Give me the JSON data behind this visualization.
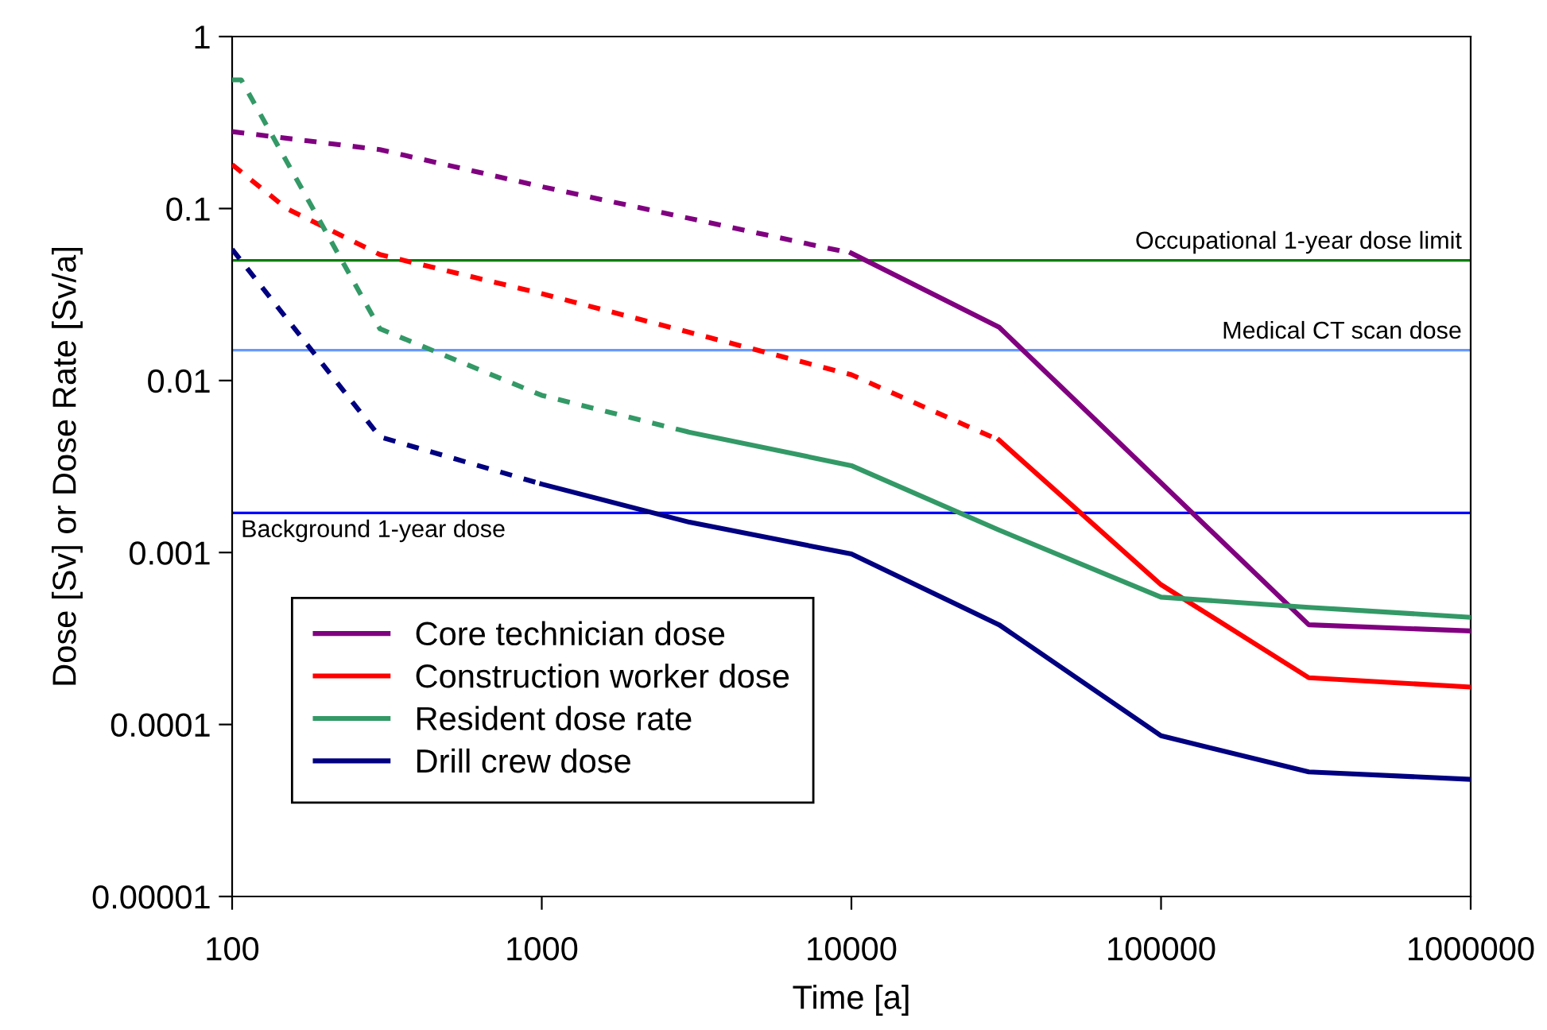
{
  "chart_data": {
    "type": "line",
    "xlabel": "Time [a]",
    "ylabel": "Dose [Sv] or Dose Rate [Sv/a]",
    "log": "xy",
    "grid": false,
    "legend": "bottom left",
    "marker": "none",
    "xlim": [
      100,
      1000000
    ],
    "xticks": [
      100,
      1000,
      10000,
      100000,
      1000000
    ],
    "ylim": [
      1e-05,
      1
    ],
    "yticks": [
      {
        "value": 1e-05,
        "label": "0.00001"
      },
      0.0001,
      0.001,
      0.01,
      0.1,
      1
    ],
    "series": [
      {
        "name": "Core technician dose",
        "color": "#800080",
        "line_style": "solid",
        "x": [
          10000,
          30000,
          300000,
          1000000
        ],
        "values": [
          0.055,
          0.0204,
          0.00038,
          0.00035
        ]
      },
      {
        "name": "Construction worker dose",
        "color": "#ff0000",
        "line_style": "solid",
        "x": [
          30000,
          100000,
          300000,
          1000000
        ],
        "values": [
          0.0045,
          0.00065,
          0.000187,
          0.000165
        ]
      },
      {
        "name": "Resident dose rate",
        "color": "#339966",
        "line_style": "solid",
        "x": [
          3000,
          10000,
          30000,
          100000,
          300000,
          1000000
        ],
        "values": [
          0.005,
          0.0032,
          0.00135,
          0.00055,
          0.00048,
          0.00042
        ]
      },
      {
        "name": "Drill crew dose",
        "color": "#000080",
        "line_style": "solid",
        "x": [
          1000,
          3000,
          10000,
          30000,
          100000,
          300000,
          1000000
        ],
        "values": [
          0.0025,
          0.0015,
          0.00098,
          0.00038,
          8.6e-05,
          5.3e-05,
          4.8e-05
        ]
      },
      {
        "color": "#800080",
        "line_style": "dashed",
        "x": [
          100,
          300,
          1000,
          10000
        ],
        "values": [
          0.28,
          0.22,
          0.134,
          0.055
        ]
      },
      {
        "color": "#ff0000",
        "line_style": "dashed",
        "x": [
          100,
          150,
          300,
          1000,
          10000,
          30000
        ],
        "values": [
          0.18,
          0.1,
          0.054,
          0.032,
          0.0108,
          0.0045
        ]
      },
      {
        "color": "#339966",
        "line_style": "dashed",
        "x": [
          100,
          107,
          300,
          1000,
          3000
        ],
        "values": [
          0.56,
          0.56,
          0.02,
          0.0082,
          0.005
        ]
      },
      {
        "color": "#000080",
        "line_style": "dashed",
        "x": [
          100,
          300,
          1000
        ],
        "values": [
          0.058,
          0.0047,
          0.0025
        ]
      }
    ],
    "ref_lines": [
      {
        "axis": "y",
        "value": 0.05,
        "label": "Occupational 1-year dose limit",
        "color": "#008000"
      },
      {
        "axis": "y",
        "value": 0.015,
        "label": "Medical CT scan dose",
        "color": "#6699ff"
      },
      {
        "axis": "y",
        "value": 0.0017,
        "label": "Background 1-year dose",
        "color": "#0000ff"
      }
    ]
  }
}
